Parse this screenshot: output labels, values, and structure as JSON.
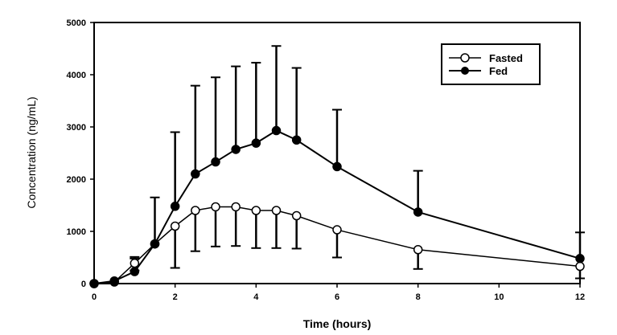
{
  "chart_data": {
    "type": "line",
    "title": "",
    "xlabel": "Time (hours)",
    "ylabel": "Concentration (ng/mL)",
    "xlim": [
      0,
      12
    ],
    "ylim": [
      0,
      5000
    ],
    "xticks": [
      "0",
      "2",
      "4",
      "6",
      "8",
      "10",
      "12"
    ],
    "yticks": [
      "0",
      "1000",
      "2000",
      "3000",
      "4000",
      "5000"
    ],
    "legend_position": "top-right",
    "series": [
      {
        "name": "Fasted",
        "marker": "open-circle",
        "x": [
          0,
          0.5,
          1,
          1.5,
          2,
          2.5,
          3,
          3.5,
          4,
          4.5,
          5,
          6,
          8,
          12
        ],
        "y": [
          0,
          30,
          390,
          760,
          1100,
          1400,
          1470,
          1470,
          1400,
          1400,
          1300,
          1030,
          650,
          330
        ],
        "error_lower": [
          0,
          0,
          250,
          0,
          300,
          620,
          710,
          720,
          680,
          680,
          670,
          500,
          280,
          100
        ],
        "error_upper": [
          0,
          0,
          510,
          0,
          0,
          0,
          0,
          0,
          0,
          0,
          0,
          0,
          0,
          0
        ]
      },
      {
        "name": "Fed",
        "marker": "filled-circle",
        "x": [
          0,
          0.5,
          1,
          1.5,
          2,
          2.5,
          3,
          3.5,
          4,
          4.5,
          5,
          6,
          8,
          12
        ],
        "y": [
          0,
          50,
          230,
          760,
          1480,
          2100,
          2330,
          2570,
          2690,
          2930,
          2750,
          2240,
          1370,
          480
        ],
        "error_lower": [
          0,
          0,
          0,
          0,
          0,
          0,
          0,
          0,
          0,
          0,
          0,
          0,
          0,
          0
        ],
        "error_upper": [
          0,
          0,
          480,
          1650,
          2900,
          3790,
          3950,
          4160,
          4230,
          4550,
          4130,
          3330,
          2160,
          980
        ]
      }
    ]
  }
}
